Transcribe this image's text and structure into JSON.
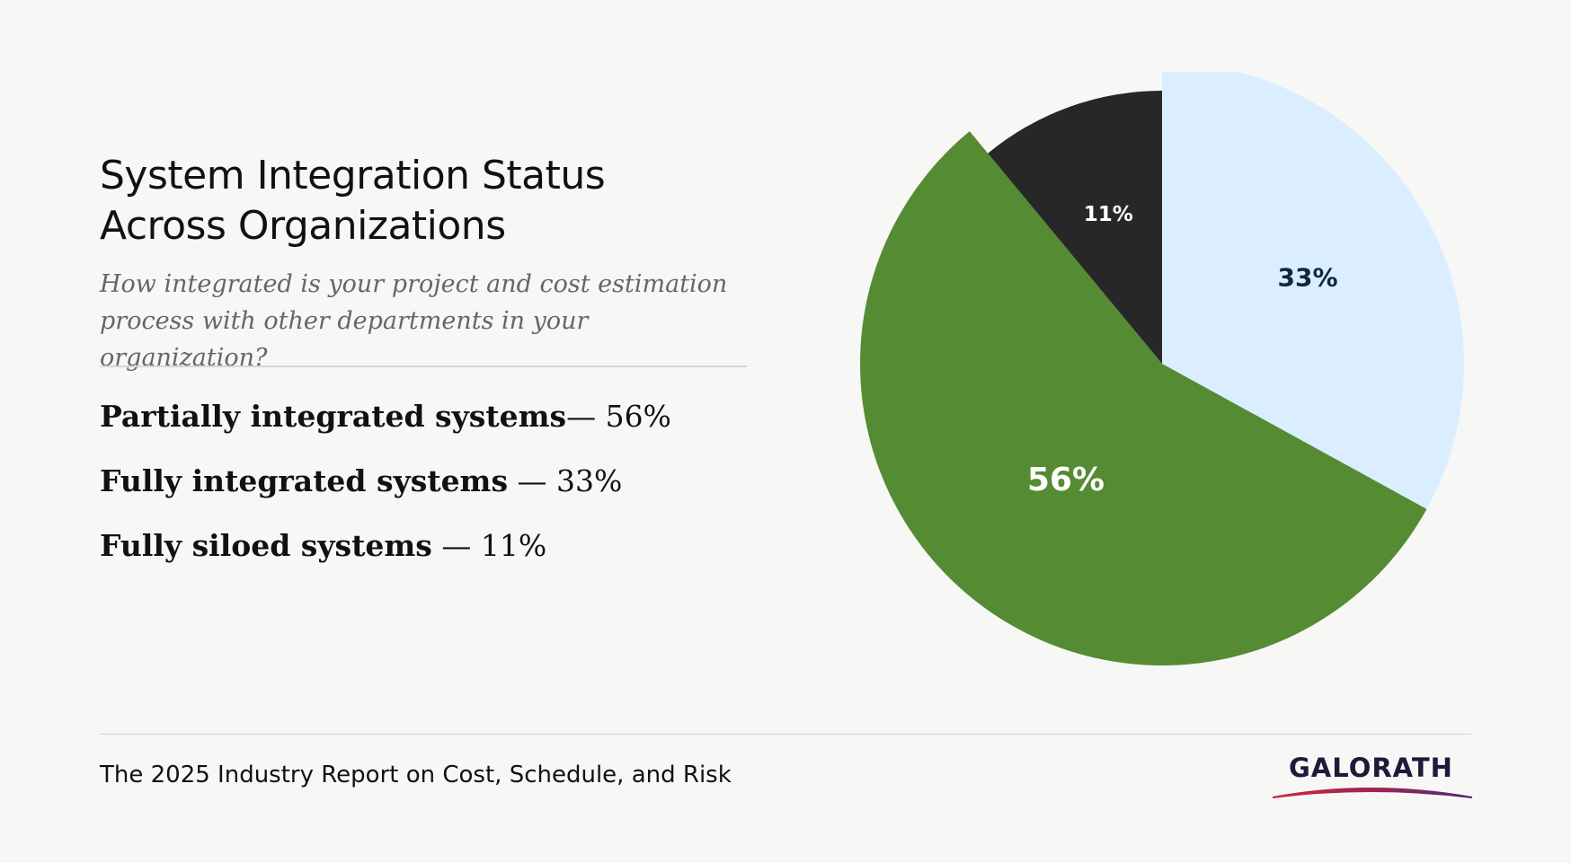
{
  "header": {
    "title_line1": "System Integration Status",
    "title_line2": "Across Organizations",
    "subtitle_line1": "How integrated is your project and cost estimation",
    "subtitle_line2": "process with other departments in your organization?"
  },
  "legend": [
    {
      "label": "Partially integrated systems",
      "value": "— 56%"
    },
    {
      "label": "Fully integrated systems",
      "value": " — 33%"
    },
    {
      "label": "Fully siloed systems",
      "value": " — 11%"
    }
  ],
  "footer": {
    "report": "The 2025 Industry Report on Cost, Schedule, and Risk"
  },
  "logo": {
    "text": "GALORATH"
  },
  "colors": {
    "background": "#f7f7f5",
    "fully": "#dbeeff",
    "partially": "#558b32",
    "siloed": "#272727"
  },
  "chart_data": {
    "type": "pie",
    "title": "System Integration Status Across Organizations",
    "start": "12 o'clock, clockwise",
    "slices": [
      {
        "name": "Fully integrated systems",
        "value": 33,
        "label": "33%",
        "color": "#dbeeff",
        "label_color": "#0f2740",
        "exploded": true
      },
      {
        "name": "Partially integrated systems",
        "value": 56,
        "label": "56%",
        "color": "#558b32",
        "label_color": "#ffffff",
        "exploded": true
      },
      {
        "name": "Fully siloed systems",
        "value": 11,
        "label": "11%",
        "color": "#272727",
        "label_color": "#ffffff",
        "exploded": false
      }
    ]
  }
}
